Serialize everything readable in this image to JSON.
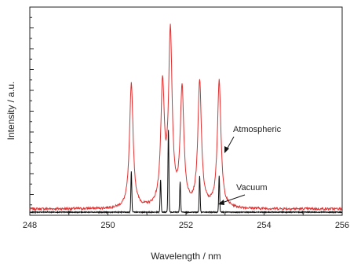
{
  "chart_data": {
    "type": "line",
    "xlabel": "Wavelength / nm",
    "ylabel": "Intensity / a.u.",
    "xlim": [
      248,
      256
    ],
    "ylim": [
      0,
      1
    ],
    "x_ticks": [
      248,
      250,
      252,
      254,
      256
    ],
    "y_tick_labels": "none",
    "grid": false,
    "line_colors": {
      "Atmospheric": "#e03030",
      "Vacuum": "#111111"
    },
    "series": [
      {
        "name": "Atmospheric",
        "baseline": 0.03,
        "peaks": [
          {
            "x": 250.6,
            "y": 0.63
          },
          {
            "x": 251.4,
            "y": 0.6
          },
          {
            "x": 251.6,
            "y": 0.85
          },
          {
            "x": 251.9,
            "y": 0.59
          },
          {
            "x": 252.35,
            "y": 0.63
          },
          {
            "x": 252.85,
            "y": 0.64
          }
        ]
      },
      {
        "name": "Vacuum",
        "baseline": 0.015,
        "peaks": [
          {
            "x": 250.6,
            "y": 0.21
          },
          {
            "x": 251.35,
            "y": 0.17
          },
          {
            "x": 251.55,
            "y": 0.41
          },
          {
            "x": 251.85,
            "y": 0.16
          },
          {
            "x": 252.35,
            "y": 0.19
          },
          {
            "x": 252.85,
            "y": 0.19
          }
        ]
      }
    ],
    "annotations": [
      {
        "text": "Atmospheric",
        "series": "Atmospheric",
        "arrow_to_x": 252.9
      },
      {
        "text": "Vacuum",
        "series": "Vacuum",
        "arrow_to_x": 252.95
      }
    ]
  }
}
